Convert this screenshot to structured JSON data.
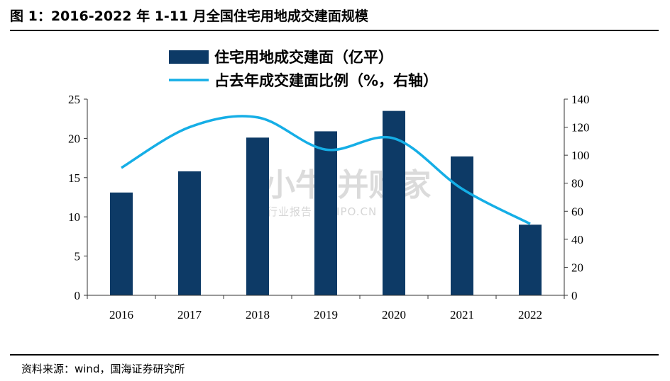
{
  "header": {
    "title": "图 1：2016-2022 年 1-11 月全国住宅用地成交建面规模"
  },
  "footer": {
    "source": "资料来源：wind，国海证券研究所"
  },
  "watermark": {
    "main": "小牛 并购家",
    "sub": "行业报告 IPOIPO.CN"
  },
  "colors": {
    "bar": "#0d3a66",
    "line": "#15aee6"
  },
  "chart_data": {
    "type": "bar",
    "title": "",
    "categories": [
      "2016",
      "2017",
      "2018",
      "2019",
      "2020",
      "2021",
      "2022"
    ],
    "series": [
      {
        "name": "住宅用地成交建面（亿平）",
        "type": "bar",
        "axis": "left",
        "values": [
          13.1,
          15.8,
          20.1,
          20.9,
          23.5,
          17.7,
          9.0
        ]
      },
      {
        "name": "占去年成交建面比例（%，右轴）",
        "type": "line",
        "axis": "right",
        "smooth": true,
        "values": [
          91,
          120,
          127,
          104,
          112,
          76,
          51
        ]
      }
    ],
    "y_left": {
      "lim": [
        0,
        25
      ],
      "ticks": [
        "0",
        "5",
        "10",
        "15",
        "20",
        "25"
      ]
    },
    "y_right": {
      "lim": [
        0,
        140
      ],
      "ticks": [
        "0",
        "20",
        "40",
        "60",
        "80",
        "100",
        "120",
        "140"
      ]
    },
    "xlabel": "",
    "ylabel": "",
    "grid": false,
    "legend": "top-center"
  }
}
